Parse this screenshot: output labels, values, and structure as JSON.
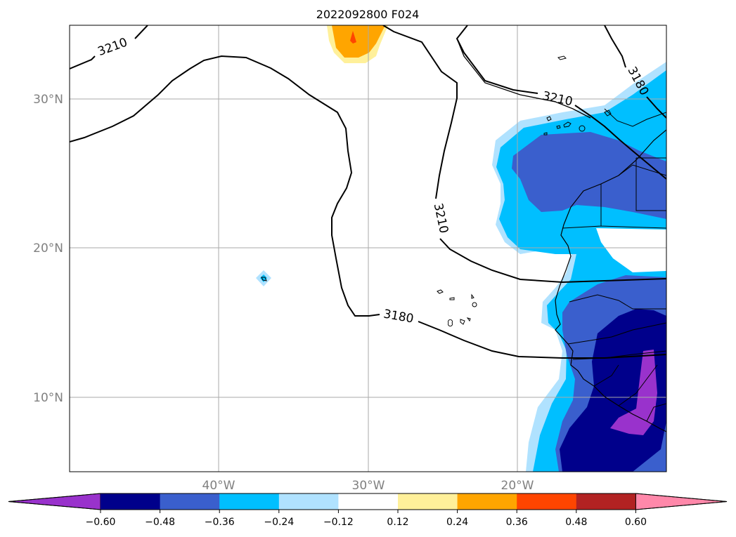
{
  "title": "2022092800 F024",
  "map": {
    "lon_range": [
      -50,
      -10
    ],
    "lat_range": [
      5,
      35
    ],
    "gridlines": true,
    "lat_ticks": [
      {
        "value": 30,
        "label": "30°N"
      },
      {
        "value": 20,
        "label": "20°N"
      },
      {
        "value": 10,
        "label": "10°N"
      }
    ],
    "lon_ticks": [
      {
        "value": -40,
        "label": "40°W"
      },
      {
        "value": -30,
        "label": "30°W"
      },
      {
        "value": -20,
        "label": "20°W"
      }
    ],
    "contour_labels": [
      {
        "id": "c3210-nw",
        "text": "3210"
      },
      {
        "id": "c3180-ne",
        "text": "3180"
      },
      {
        "id": "c3210-e",
        "text": "3210"
      },
      {
        "id": "c3210-mid",
        "text": "3210"
      },
      {
        "id": "c3180-s",
        "text": "3180"
      }
    ]
  },
  "colorbar": {
    "extend": "both",
    "levels": [
      "−0.60",
      "−0.48",
      "−0.36",
      "−0.24",
      "−0.12",
      "0.12",
      "0.24",
      "0.36",
      "0.48",
      "0.60"
    ],
    "colors": [
      "#9932cc",
      "#00008b",
      "#3a5fcd",
      "#00bfff",
      "#b0e2ff",
      "#ffffff",
      "#fff09a",
      "#ffa500",
      "#ff4500",
      "#b22222",
      "#ff88aa"
    ]
  }
}
